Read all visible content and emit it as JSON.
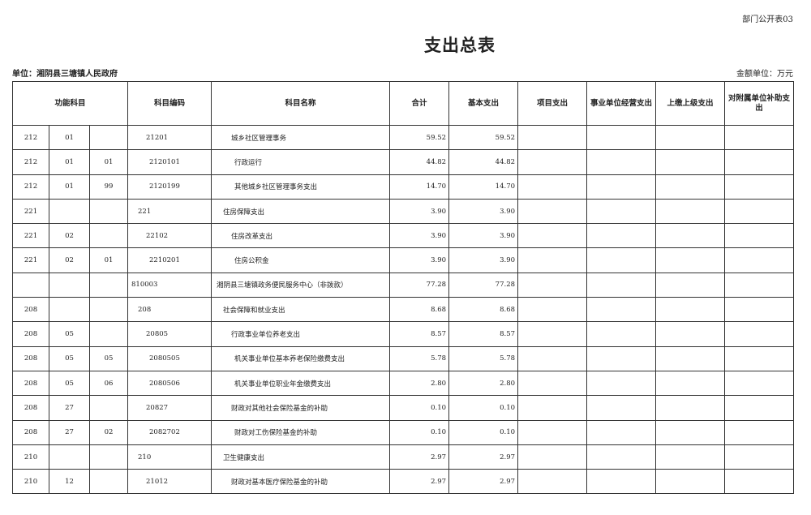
{
  "header": {
    "form_no": "部门公开表03",
    "title": "支出总表",
    "unit": "单位：湘阴县三塘镇人民政府",
    "money_unit": "金额单位：万元"
  },
  "table": {
    "headers": [
      "功能科目",
      "科目编码",
      "科目名称",
      "合计",
      "基本支出",
      "项目支出",
      "事业单位经营支出",
      "上缴上级支出",
      "对附属单位补助支出"
    ],
    "rows": [
      [
        "212",
        "01",
        null,
        "21201",
        "城乡社区管理事务",
        "59.52",
        "59.52"
      ],
      [
        "212",
        "01",
        "01",
        "2120101",
        "行政运行",
        "44.82",
        "44.82"
      ],
      [
        "212",
        "01",
        "99",
        "2120199",
        "其他城乡社区管理事务支出",
        "14.70",
        "14.70"
      ],
      [
        "221",
        null,
        null,
        "221",
        "住房保障支出",
        "3.90",
        "3.90"
      ],
      [
        "221",
        "02",
        null,
        "22102",
        "住房改革支出",
        "3.90",
        "3.90"
      ],
      [
        "221",
        "02",
        "01",
        "2210201",
        "住房公积金",
        "3.90",
        "3.90"
      ],
      [
        null,
        null,
        null,
        "810003",
        "湘阴县三塘镇政务便民服务中心（非拨款）",
        "77.28",
        "77.28"
      ],
      [
        "208",
        null,
        null,
        "208",
        "社会保障和就业支出",
        "8.68",
        "8.68"
      ],
      [
        "208",
        "05",
        null,
        "20805",
        "行政事业单位养老支出",
        "8.57",
        "8.57"
      ],
      [
        "208",
        "05",
        "05",
        "2080505",
        "机关事业单位基本养老保险缴费支出",
        "5.78",
        "5.78"
      ],
      [
        "208",
        "05",
        "06",
        "2080506",
        "机关事业单位职业年金缴费支出",
        "2.80",
        "2.80"
      ],
      [
        "208",
        "27",
        null,
        "20827",
        "财政对其他社会保险基金的补助",
        "0.10",
        "0.10"
      ],
      [
        "208",
        "27",
        "02",
        "2082702",
        "财政对工伤保险基金的补助",
        "0.10",
        "0.10"
      ],
      [
        "210",
        null,
        null,
        "210",
        "卫生健康支出",
        "2.97",
        "2.97"
      ],
      [
        "210",
        "12",
        null,
        "21012",
        "财政对基本医疗保险基金的补助",
        "2.97",
        "2.97"
      ]
    ]
  }
}
